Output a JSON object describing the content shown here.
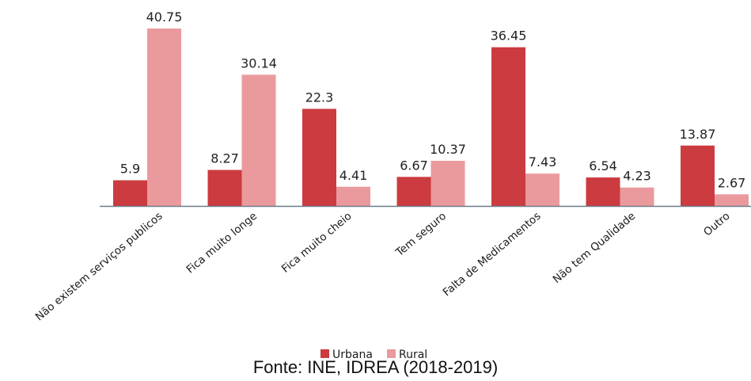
{
  "chart_data": {
    "type": "bar",
    "categories": [
      "Não existem serviços publicos",
      "Fica muito  longe",
      "Fica muito cheio",
      "Tem seguro",
      "Falta de Medicamentos",
      "Não tem Qualidade",
      "Outro"
    ],
    "series": [
      {
        "name": "Urbana",
        "color": "#cc3b3f",
        "values": [
          5.9,
          8.27,
          22.3,
          6.67,
          36.45,
          6.54,
          13.87
        ]
      },
      {
        "name": "Rural",
        "color": "#ea9a9d",
        "values": [
          40.75,
          30.14,
          4.41,
          10.37,
          7.43,
          4.23,
          2.67
        ]
      }
    ],
    "value_labels": {
      "Urbana": [
        "5.9",
        "8.27",
        "22.3",
        "6.67",
        "36.45",
        "6.54",
        "13.87"
      ],
      "Rural": [
        "40.75",
        "30.14",
        "4.41",
        "10.37",
        "7.43",
        "4.23",
        "2.67"
      ]
    },
    "ylim": [
      0,
      43
    ],
    "grid": false,
    "legend_position": "bottom-center",
    "axis_color": "#6c7d8c"
  },
  "source_note": "Fonte: INE, IDREA (2018-2019)"
}
